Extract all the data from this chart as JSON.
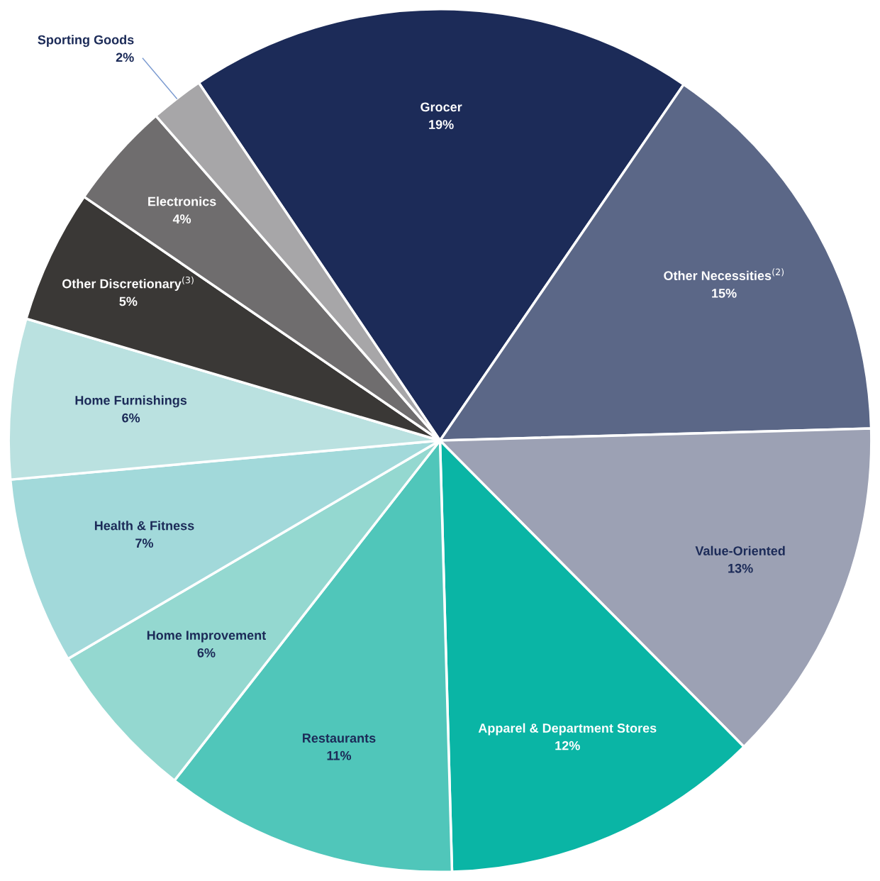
{
  "chart_data": {
    "type": "pie",
    "categories": [
      "Grocer",
      "Other Necessities$^{(2)}$",
      "Value-Oriented",
      "Apparel & Department Stores",
      "Restaurants",
      "Home Improvement",
      "Health & Fitness",
      "Home Furnishings",
      "Other Discretionary$^{(3)}$",
      "Electronics",
      "Sporting Goods"
    ],
    "values": [
      19,
      15,
      13,
      12,
      11,
      6,
      7,
      6,
      5,
      4,
      2
    ],
    "value_labels": [
      "19%",
      "15%",
      "13%",
      "12%",
      "11%",
      "6%",
      "7%",
      "6%",
      "5%",
      "4%",
      "2%"
    ],
    "colors": [
      "#1c2b58",
      "#5b6787",
      "#9ca1b4",
      "#0ab5a5",
      "#50c6ba",
      "#94d8d0",
      "#a2d9da",
      "#bae1e0",
      "#3a3836",
      "#6f6d6e",
      "#a7a6a8"
    ]
  }
}
